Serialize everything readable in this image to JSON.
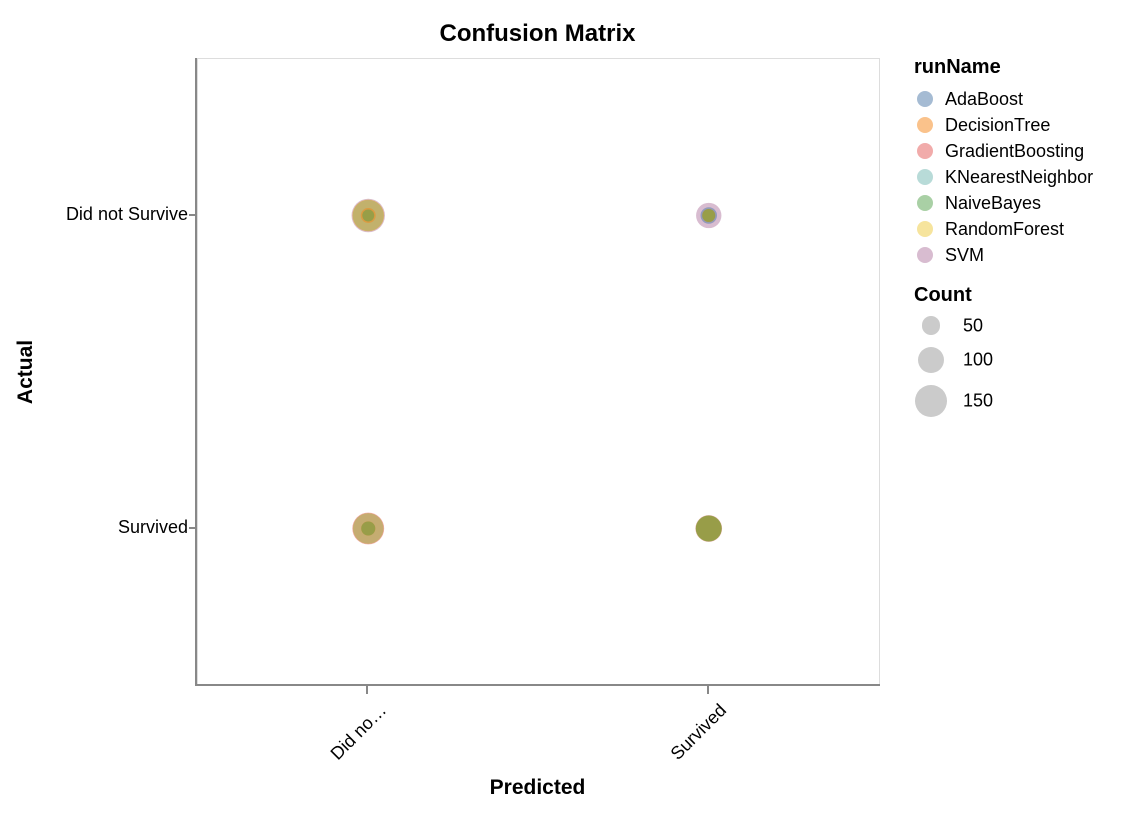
{
  "title": "Confusion Matrix",
  "axes": {
    "x": {
      "title": "Predicted",
      "tick_labels": [
        "Did no…",
        "Survived"
      ]
    },
    "y": {
      "title": "Actual",
      "tick_labels": [
        "Did not Survive",
        "Survived"
      ]
    }
  },
  "legend": {
    "color": {
      "title": "runName",
      "entries": [
        {
          "label": "AdaBoost",
          "color": "#4c78a8"
        },
        {
          "label": "DecisionTree",
          "color": "#f58518"
        },
        {
          "label": "GradientBoosting",
          "color": "#e45756"
        },
        {
          "label": "KNearestNeighbor",
          "color": "#72b7b2"
        },
        {
          "label": "NaiveBayes",
          "color": "#54a24b"
        },
        {
          "label": "RandomForest",
          "color": "#eeca3b"
        },
        {
          "label": "SVM",
          "color": "#b279a2"
        }
      ]
    },
    "size": {
      "title": "Count",
      "symbol_color": "#cbcbcb",
      "entries": [
        {
          "label": "50",
          "count": 50
        },
        {
          "label": "100",
          "count": 100
        },
        {
          "label": "150",
          "count": 150
        }
      ]
    }
  },
  "chart_data": {
    "type": "scatter",
    "title": "Confusion Matrix",
    "xlabel": "Predicted",
    "ylabel": "Actual",
    "x_categories": [
      "Did not Survive",
      "Survived"
    ],
    "y_categories": [
      "Did not Survive",
      "Survived"
    ],
    "grid": false,
    "legend_position": "right",
    "mark_opacity": 0.5,
    "size_legend_counts": [
      50,
      100,
      150
    ],
    "cells": [
      {
        "predicted": "Did not Survive",
        "actual": "Did not Survive",
        "runs": [
          {
            "name": "SVM",
            "count": 165
          },
          {
            "name": "AdaBoost",
            "count": 140
          },
          {
            "name": "GradientBoosting",
            "count": 145
          },
          {
            "name": "KNearestNeighbor",
            "count": 140
          },
          {
            "name": "RandomForest",
            "count": 150
          },
          {
            "name": "DecisionTree",
            "count": 33
          },
          {
            "name": "NaiveBayes",
            "count": 21
          }
        ]
      },
      {
        "predicted": "Survived",
        "actual": "Did not Survive",
        "runs": [
          {
            "name": "SVM",
            "count": 95
          },
          {
            "name": "AdaBoost",
            "count": 40
          },
          {
            "name": "GradientBoosting",
            "count": 25
          },
          {
            "name": "KNearestNeighbor",
            "count": 28
          },
          {
            "name": "RandomForest",
            "count": 22
          },
          {
            "name": "DecisionTree",
            "count": 26
          },
          {
            "name": "NaiveBayes",
            "count": 24
          }
        ]
      },
      {
        "predicted": "Did not Survive",
        "actual": "Survived",
        "runs": [
          {
            "name": "GradientBoosting",
            "count": 150
          },
          {
            "name": "AdaBoost",
            "count": 135
          },
          {
            "name": "KNearestNeighbor",
            "count": 135
          },
          {
            "name": "SVM",
            "count": 138
          },
          {
            "name": "RandomForest",
            "count": 140
          },
          {
            "name": "DecisionTree",
            "count": 30
          },
          {
            "name": "NaiveBayes",
            "count": 29
          }
        ]
      },
      {
        "predicted": "Survived",
        "actual": "Survived",
        "runs": [
          {
            "name": "GradientBoosting",
            "count": 105
          },
          {
            "name": "AdaBoost",
            "count": 98
          },
          {
            "name": "KNearestNeighbor",
            "count": 98
          },
          {
            "name": "SVM",
            "count": 92
          },
          {
            "name": "RandomForest",
            "count": 100
          },
          {
            "name": "DecisionTree",
            "count": 96
          },
          {
            "name": "NaiveBayes",
            "count": 99
          }
        ]
      }
    ]
  }
}
